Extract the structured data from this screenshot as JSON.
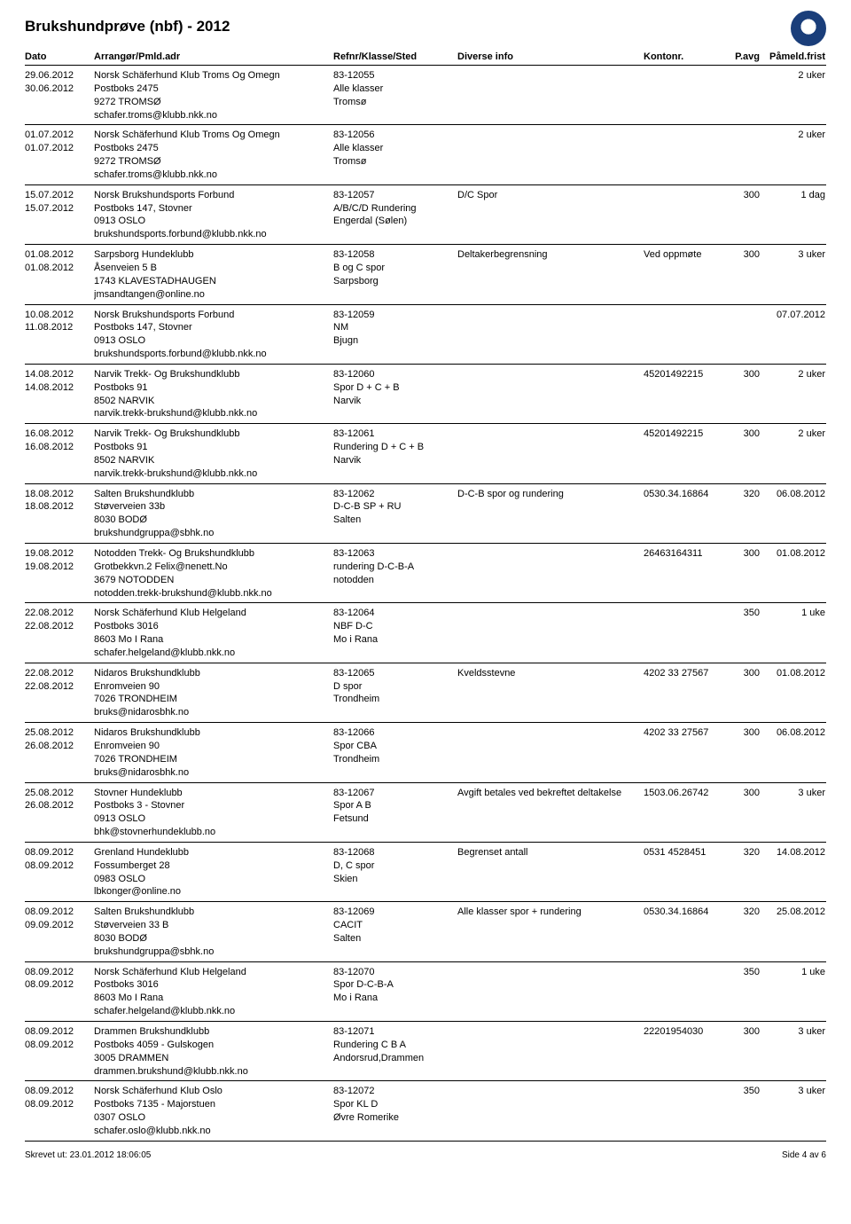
{
  "page": {
    "title": "Brukshundprøve (nbf) - 2012",
    "printed": "Skrevet ut: 23.01.2012 18:06:05",
    "pagenum": "Side 4 av 6"
  },
  "head": {
    "dato": "Dato",
    "arr": "Arrangør/Pmld.adr",
    "ref": "Refnr/Klasse/Sted",
    "info": "Diverse info",
    "konto": "Kontonr.",
    "pavg": "P.avg",
    "frist": "Påmeld.frist"
  },
  "rows": [
    {
      "dato": [
        "29.06.2012",
        "30.06.2012"
      ],
      "arr": [
        "Norsk Schäferhund Klub Troms Og Omegn",
        "Postboks 2475",
        "9272   TROMSØ",
        "schafer.troms@klubb.nkk.no"
      ],
      "ref": [
        "83-12055",
        "Alle klasser",
        "Tromsø"
      ],
      "info": "",
      "konto": "",
      "pavg": "",
      "frist": "2 uker"
    },
    {
      "dato": [
        "01.07.2012",
        "01.07.2012"
      ],
      "arr": [
        "Norsk Schäferhund Klub Troms Og Omegn",
        "Postboks 2475",
        "9272   TROMSØ",
        "schafer.troms@klubb.nkk.no"
      ],
      "ref": [
        "83-12056",
        "Alle klasser",
        "Tromsø"
      ],
      "info": "",
      "konto": "",
      "pavg": "",
      "frist": "2 uker"
    },
    {
      "dato": [
        "15.07.2012",
        "15.07.2012"
      ],
      "arr": [
        "Norsk Brukshundsports Forbund",
        "Postboks 147, Stovner",
        "0913   OSLO",
        "brukshundsports.forbund@klubb.nkk.no"
      ],
      "ref": [
        "83-12057",
        "A/B/C/D Rundering",
        "Engerdal (Sølen)"
      ],
      "info": "D/C Spor",
      "konto": "",
      "pavg": "300",
      "frist": "1 dag"
    },
    {
      "dato": [
        "01.08.2012",
        "01.08.2012"
      ],
      "arr": [
        "Sarpsborg Hundeklubb",
        "Åsenveien 5 B",
        "1743   KLAVESTADHAUGEN",
        "jmsandtangen@online.no"
      ],
      "ref": [
        "83-12058",
        "B og C spor",
        "Sarpsborg"
      ],
      "info": "Deltakerbegrensning",
      "konto": "Ved oppmøte",
      "pavg": "300",
      "frist": "3 uker"
    },
    {
      "dato": [
        "10.08.2012",
        "11.08.2012"
      ],
      "arr": [
        "Norsk Brukshundsports Forbund",
        "Postboks 147, Stovner",
        "0913   OSLO",
        "brukshundsports.forbund@klubb.nkk.no"
      ],
      "ref": [
        "83-12059",
        "NM",
        "Bjugn"
      ],
      "info": "",
      "konto": "",
      "pavg": "",
      "frist": "07.07.2012"
    },
    {
      "dato": [
        "14.08.2012",
        "14.08.2012"
      ],
      "arr": [
        "Narvik Trekk- Og Brukshundklubb",
        "Postboks 91",
        "8502   NARVIK",
        "narvik.trekk-brukshund@klubb.nkk.no"
      ],
      "ref": [
        "83-12060",
        "Spor D + C + B",
        "Narvik"
      ],
      "info": "",
      "konto": "45201492215",
      "pavg": "300",
      "frist": "2 uker"
    },
    {
      "dato": [
        "16.08.2012",
        "16.08.2012"
      ],
      "arr": [
        "Narvik Trekk- Og Brukshundklubb",
        "Postboks 91",
        "8502   NARVIK",
        "narvik.trekk-brukshund@klubb.nkk.no"
      ],
      "ref": [
        "83-12061",
        "Rundering D + C + B",
        "Narvik"
      ],
      "info": "",
      "konto": "45201492215",
      "pavg": "300",
      "frist": "2 uker"
    },
    {
      "dato": [
        "18.08.2012",
        "18.08.2012"
      ],
      "arr": [
        "Salten Brukshundklubb",
        "Støverveien 33b",
        "8030   BODØ",
        "brukshundgruppa@sbhk.no"
      ],
      "ref": [
        "83-12062",
        "D-C-B SP + RU",
        "Salten"
      ],
      "info": "D-C-B spor og rundering",
      "konto": "0530.34.16864",
      "pavg": "320",
      "frist": "06.08.2012"
    },
    {
      "dato": [
        "19.08.2012",
        "19.08.2012"
      ],
      "arr": [
        "Notodden Trekk- Og Brukshundklubb",
        "Grotbekkvn.2 Felix@nenett.No",
        "3679   NOTODDEN",
        "notodden.trekk-brukshund@klubb.nkk.no"
      ],
      "ref": [
        "83-12063",
        "rundering D-C-B-A",
        "notodden"
      ],
      "info": "",
      "konto": "26463164311",
      "pavg": "300",
      "frist": "01.08.2012"
    },
    {
      "dato": [
        "22.08.2012",
        "22.08.2012"
      ],
      "arr": [
        "Norsk Schäferhund Klub Helgeland",
        "Postboks 3016",
        "8603   Mo I Rana",
        "schafer.helgeland@klubb.nkk.no"
      ],
      "ref": [
        "83-12064",
        "NBF D-C",
        "Mo i Rana"
      ],
      "info": "",
      "konto": "",
      "pavg": "350",
      "frist": "1 uke"
    },
    {
      "dato": [
        "22.08.2012",
        "22.08.2012"
      ],
      "arr": [
        "Nidaros Brukshundklubb",
        "Enromveien 90",
        "7026   TRONDHEIM",
        "bruks@nidarosbhk.no"
      ],
      "ref": [
        "83-12065",
        "D spor",
        "Trondheim"
      ],
      "info": "Kveldsstevne",
      "konto": "4202 33 27567",
      "pavg": "300",
      "frist": "01.08.2012"
    },
    {
      "dato": [
        "25.08.2012",
        "26.08.2012"
      ],
      "arr": [
        "Nidaros Brukshundklubb",
        "Enromveien 90",
        "7026   TRONDHEIM",
        "bruks@nidarosbhk.no"
      ],
      "ref": [
        "83-12066",
        "Spor CBA",
        "Trondheim"
      ],
      "info": "",
      "konto": "4202 33 27567",
      "pavg": "300",
      "frist": "06.08.2012"
    },
    {
      "dato": [
        "25.08.2012",
        "26.08.2012"
      ],
      "arr": [
        "Stovner Hundeklubb",
        "Postboks 3 - Stovner",
        "0913   OSLO",
        "bhk@stovnerhundeklubb.no"
      ],
      "ref": [
        "83-12067",
        "Spor A B",
        "Fetsund"
      ],
      "info": "Avgift betales ved bekreftet deltakelse",
      "konto": "1503.06.26742",
      "pavg": "300",
      "frist": "3 uker"
    },
    {
      "dato": [
        "08.09.2012",
        "08.09.2012"
      ],
      "arr": [
        "Grenland Hundeklubb",
        "Fossumberget 28",
        "0983   OSLO",
        "lbkonger@online.no"
      ],
      "ref": [
        "83-12068",
        "D, C spor",
        "Skien"
      ],
      "info": "Begrenset antall",
      "konto": "0531 4528451",
      "pavg": "320",
      "frist": "14.08.2012"
    },
    {
      "dato": [
        "08.09.2012",
        "09.09.2012"
      ],
      "arr": [
        "Salten Brukshundklubb",
        "Støverveien 33 B",
        "8030   BODØ",
        "brukshundgruppa@sbhk.no"
      ],
      "ref": [
        "83-12069",
        "CACIT",
        "Salten"
      ],
      "info": "Alle klasser spor + rundering",
      "konto": "0530.34.16864",
      "pavg": "320",
      "frist": "25.08.2012"
    },
    {
      "dato": [
        "08.09.2012",
        "08.09.2012"
      ],
      "arr": [
        "Norsk Schäferhund Klub Helgeland",
        "Postboks 3016",
        "8603   Mo I Rana",
        "schafer.helgeland@klubb.nkk.no"
      ],
      "ref": [
        "83-12070",
        "Spor D-C-B-A",
        "Mo i Rana"
      ],
      "info": "",
      "konto": "",
      "pavg": "350",
      "frist": "1 uke"
    },
    {
      "dato": [
        "08.09.2012",
        "08.09.2012"
      ],
      "arr": [
        "Drammen Brukshundklubb",
        "Postboks 4059 - Gulskogen",
        "3005   DRAMMEN",
        "drammen.brukshund@klubb.nkk.no"
      ],
      "ref": [
        "83-12071",
        "Rundering C B A",
        "Andorsrud,Drammen"
      ],
      "info": "",
      "konto": "22201954030",
      "pavg": "300",
      "frist": "3 uker"
    },
    {
      "dato": [
        "08.09.2012",
        "08.09.2012"
      ],
      "arr": [
        "Norsk Schäferhund Klub Oslo",
        "Postboks 7135 - Majorstuen",
        "0307   OSLO",
        "schafer.oslo@klubb.nkk.no"
      ],
      "ref": [
        "83-12072",
        "Spor KL D",
        "Øvre Romerike"
      ],
      "info": "",
      "konto": "",
      "pavg": "350",
      "frist": "3 uker"
    }
  ]
}
